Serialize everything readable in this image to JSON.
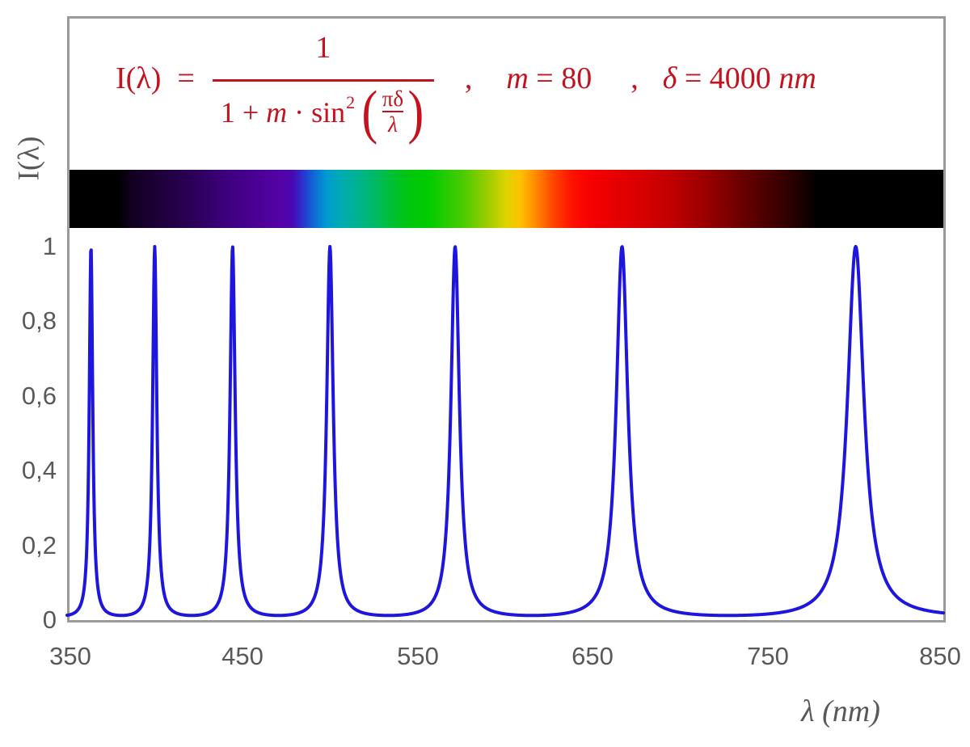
{
  "colors": {
    "formula_red": "#c4121f",
    "curve_blue": "#1f16dd",
    "axis_gray": "#9a9a9a",
    "text_gray": "#595959"
  },
  "formula": {
    "lhs": "I(λ)",
    "equals": "=",
    "numerator": "1",
    "den_t1": "1 + ",
    "den_var": "m",
    "den_t2": " · sin",
    "den_exp": "2",
    "paren_open": "(",
    "inner_num": "πδ",
    "inner_den": "λ",
    "paren_close": ")",
    "comma1": ",",
    "param_m_var": "m",
    "param_m_rest": " = 80",
    "comma2": ",",
    "param_d_var": "δ",
    "param_d_rest": " = 4000 ",
    "param_d_unit": "nm"
  },
  "y_axis": {
    "title": "I(λ)",
    "ticks": [
      {
        "label": "1",
        "value": 1.0
      },
      {
        "label": "0,8",
        "value": 0.8
      },
      {
        "label": "0,6",
        "value": 0.6
      },
      {
        "label": "0,4",
        "value": 0.4
      },
      {
        "label": "0,2",
        "value": 0.2
      },
      {
        "label": "0",
        "value": 0.0
      }
    ]
  },
  "x_axis": {
    "title": "λ  (nm)",
    "ticks": [
      {
        "label": "350",
        "value": 350
      },
      {
        "label": "450",
        "value": 450
      },
      {
        "label": "550",
        "value": 550
      },
      {
        "label": "650",
        "value": 650
      },
      {
        "label": "750",
        "value": 750
      },
      {
        "label": "850",
        "value": 850
      }
    ]
  },
  "chart_data": {
    "type": "line",
    "title": "I(λ) = 1 / (1 + m·sin²(πδ/λ)) ,  m = 80 ,  δ = 4000 nm",
    "xlabel": "λ (nm)",
    "ylabel": "I(λ)",
    "xlim": [
      350,
      850
    ],
    "ylim": [
      0,
      1
    ],
    "grid": false,
    "legend": false,
    "m": 80,
    "delta_nm": 4000,
    "function": "I(lambda) = 1 / (1 + m * sin^2(pi*delta/lambda))",
    "peak_wavelengths_nm": [
      363.6,
      400.0,
      444.4,
      500.0,
      571.4,
      666.7,
      800.0
    ],
    "peak_value": 1.0,
    "baseline_value": 0.0123,
    "sample_step_nm": 0.25,
    "line_color": "#1f16dd",
    "line_width": 4
  },
  "spectrum_bar": {
    "description": "visible-light spectrum strip aligned to wavelength axis 350–850 nm, black outside ~380–780 nm",
    "stops": [
      {
        "at": "0%",
        "color": "#000000"
      },
      {
        "at": "5.6%",
        "color": "#000000"
      },
      {
        "at": "7%",
        "color": "#10001f"
      },
      {
        "at": "10%",
        "color": "#1d0038"
      },
      {
        "at": "14%",
        "color": "#2b0057"
      },
      {
        "at": "18%",
        "color": "#3d007e"
      },
      {
        "at": "21%",
        "color": "#490092"
      },
      {
        "at": "24%",
        "color": "#5302a5"
      },
      {
        "at": "25.6%",
        "color": "#4a08b4"
      },
      {
        "at": "26.6%",
        "color": "#2c2fcd"
      },
      {
        "at": "28%",
        "color": "#0e6ad4"
      },
      {
        "at": "29.4%",
        "color": "#009bd1"
      },
      {
        "at": "31%",
        "color": "#00aab3"
      },
      {
        "at": "33%",
        "color": "#00b390"
      },
      {
        "at": "35%",
        "color": "#00b964"
      },
      {
        "at": "37%",
        "color": "#00c030"
      },
      {
        "at": "39%",
        "color": "#00c70c"
      },
      {
        "at": "41%",
        "color": "#00cc00"
      },
      {
        "at": "45%",
        "color": "#47cc00"
      },
      {
        "at": "48%",
        "color": "#a2cc00"
      },
      {
        "at": "50%",
        "color": "#ded400"
      },
      {
        "at": "51.6%",
        "color": "#ffc000"
      },
      {
        "at": "53.4%",
        "color": "#ff8800"
      },
      {
        "at": "55.4%",
        "color": "#ff4400"
      },
      {
        "at": "57.6%",
        "color": "#ff0f00"
      },
      {
        "at": "60%",
        "color": "#f40000"
      },
      {
        "at": "64%",
        "color": "#e00000"
      },
      {
        "at": "69%",
        "color": "#c00000"
      },
      {
        "at": "73%",
        "color": "#980000"
      },
      {
        "at": "78%",
        "color": "#5e0000"
      },
      {
        "at": "83%",
        "color": "#270000"
      },
      {
        "at": "85.6%",
        "color": "#000000"
      },
      {
        "at": "100%",
        "color": "#000000"
      }
    ]
  }
}
